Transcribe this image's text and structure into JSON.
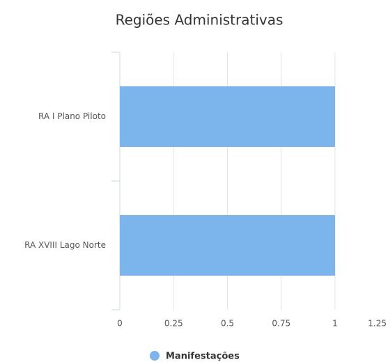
{
  "chart_data": {
    "type": "bar",
    "orientation": "horizontal",
    "title": "Regiões Administrativas",
    "categories": [
      "RA I Plano Piloto",
      "RA XVIII Lago Norte"
    ],
    "series": [
      {
        "name": "Manifestações",
        "color": "#7cb5ec",
        "values": [
          1,
          1
        ]
      }
    ],
    "xlim": [
      0,
      1.25
    ],
    "xticks": [
      0,
      0.25,
      0.5,
      0.75,
      1,
      1.25
    ],
    "grid": true,
    "legend": "bottom"
  }
}
